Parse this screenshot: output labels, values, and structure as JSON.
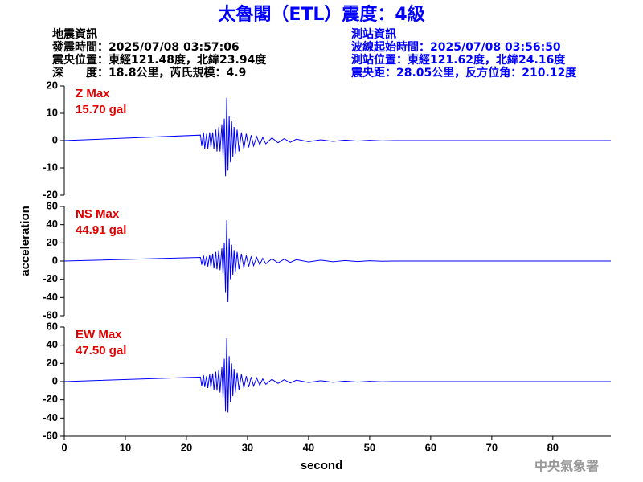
{
  "header": {
    "title": "太魯閣（ETL）震度：4級",
    "left": [
      "地震資訊",
      "發震時間：2025/07/08 03:57:06",
      "震央位置：東經121.48度，北緯23.94度",
      "深　　度：18.8公里，芮氏規模：4.9"
    ],
    "right": [
      "測站資訊",
      "波線起始時間：2025/07/08 03:56:50",
      "測站位置：東經121.62度，北緯24.16度",
      "震央距：28.05公里，反方位角：210.12度"
    ],
    "watermark": "中央氣象署"
  },
  "chart_data": [
    {
      "type": "line",
      "annotations": [
        "Z Max",
        "15.70 gal"
      ],
      "xlim": [
        0,
        89.5
      ],
      "ylim": [
        -20,
        20
      ],
      "yticks": [
        -20,
        -10,
        0,
        10,
        20
      ],
      "series": [
        {
          "name": "Z",
          "color": "#0000ff",
          "x": [
            0,
            22.3,
            22.5,
            22.8,
            23.0,
            23.3,
            23.5,
            23.8,
            24.0,
            24.3,
            24.5,
            24.8,
            25.0,
            25.3,
            25.5,
            25.8,
            26.0,
            26.2,
            26.4,
            26.6,
            26.8,
            27.0,
            27.2,
            27.4,
            27.6,
            27.8,
            28.0,
            28.3,
            28.6,
            29.0,
            29.4,
            29.8,
            30.2,
            30.6,
            31.0,
            31.5,
            32.0,
            32.5,
            33.0,
            34,
            35,
            36,
            37,
            38,
            40,
            42,
            44,
            46,
            48,
            50,
            52,
            54,
            89.5
          ],
          "values": [
            0,
            2,
            -2,
            3,
            -3,
            2.5,
            -3,
            3,
            -2.5,
            3,
            -3,
            4,
            -4,
            5,
            -4,
            6,
            -6,
            8,
            -13,
            15.7,
            -11,
            9,
            -8,
            7,
            -6,
            5,
            -5,
            4,
            -4,
            3,
            -3,
            2.5,
            -2.5,
            2,
            -2,
            1.5,
            -1.5,
            1.2,
            -1.2,
            1,
            -0.8,
            0.7,
            -0.6,
            0.5,
            -0.4,
            0.3,
            -0.3,
            0.2,
            -0.2,
            0.1,
            -0.1,
            0,
            0
          ]
        }
      ]
    },
    {
      "type": "line",
      "annotations": [
        "NS Max",
        "44.91 gal"
      ],
      "ylabel": "acceleration",
      "xlim": [
        0,
        89.5
      ],
      "ylim": [
        -60,
        60
      ],
      "yticks": [
        -60,
        -40,
        -20,
        0,
        20,
        40,
        60
      ],
      "series": [
        {
          "name": "NS",
          "color": "#0000ff",
          "x": [
            0,
            22.3,
            22.5,
            22.8,
            23.0,
            23.3,
            23.5,
            23.8,
            24.0,
            24.3,
            24.5,
            24.8,
            25.0,
            25.3,
            25.5,
            25.8,
            26.0,
            26.2,
            26.4,
            26.6,
            26.8,
            27.0,
            27.2,
            27.4,
            27.6,
            27.8,
            28.0,
            28.3,
            28.6,
            29.0,
            29.4,
            29.8,
            30.2,
            30.6,
            31.0,
            31.5,
            32.0,
            32.5,
            33.0,
            34,
            35,
            36,
            37,
            38,
            40,
            42,
            44,
            46,
            48,
            50,
            52,
            54,
            89.5
          ],
          "values": [
            0,
            4,
            -4,
            6,
            -5,
            5,
            -6,
            7,
            -6,
            8,
            -8,
            10,
            -9,
            12,
            -10,
            14,
            -15,
            20,
            -35,
            44.91,
            -45,
            25,
            -20,
            18,
            -15,
            12,
            -12,
            10,
            -9,
            8,
            -7,
            6,
            -6,
            5,
            -5,
            4,
            -4,
            3,
            -3,
            2.5,
            -2,
            2,
            -1.5,
            1.5,
            -1,
            1,
            -0.8,
            0.6,
            -0.5,
            0.3,
            -0.2,
            0,
            0
          ]
        }
      ]
    },
    {
      "type": "line",
      "annotations": [
        "EW Max",
        "47.50 gal"
      ],
      "xlabel": "second",
      "xlim": [
        0,
        89.5
      ],
      "xticks": [
        0,
        10,
        20,
        30,
        40,
        50,
        60,
        70,
        80
      ],
      "ylim": [
        -60,
        60
      ],
      "yticks": [
        -60,
        -40,
        -20,
        0,
        20,
        40,
        60
      ],
      "series": [
        {
          "name": "EW",
          "color": "#0000ff",
          "x": [
            0,
            22.3,
            22.5,
            22.8,
            23.0,
            23.3,
            23.5,
            23.8,
            24.0,
            24.3,
            24.5,
            24.8,
            25.0,
            25.3,
            25.5,
            25.8,
            26.0,
            26.2,
            26.4,
            26.6,
            26.8,
            27.0,
            27.2,
            27.4,
            27.6,
            27.8,
            28.0,
            28.3,
            28.6,
            29.0,
            29.4,
            29.8,
            30.2,
            30.6,
            31.0,
            31.5,
            32.0,
            32.5,
            33.0,
            34,
            35,
            36,
            37,
            38,
            40,
            42,
            44,
            46,
            48,
            50,
            52,
            54,
            89.5
          ],
          "values": [
            0,
            5,
            -5,
            7,
            -6,
            6,
            -7,
            8,
            -7,
            9,
            -9,
            11,
            -10,
            13,
            -12,
            16,
            -18,
            25,
            -33,
            47.5,
            -34,
            28,
            -22,
            20,
            -16,
            14,
            -12,
            10,
            -9,
            8,
            -7,
            6,
            -6,
            5,
            -5,
            4,
            -4,
            3,
            -3,
            2.5,
            -2,
            2,
            -1.5,
            1.5,
            -1,
            1,
            -0.8,
            0.6,
            -0.5,
            0.3,
            -0.2,
            0,
            0
          ]
        }
      ]
    }
  ]
}
